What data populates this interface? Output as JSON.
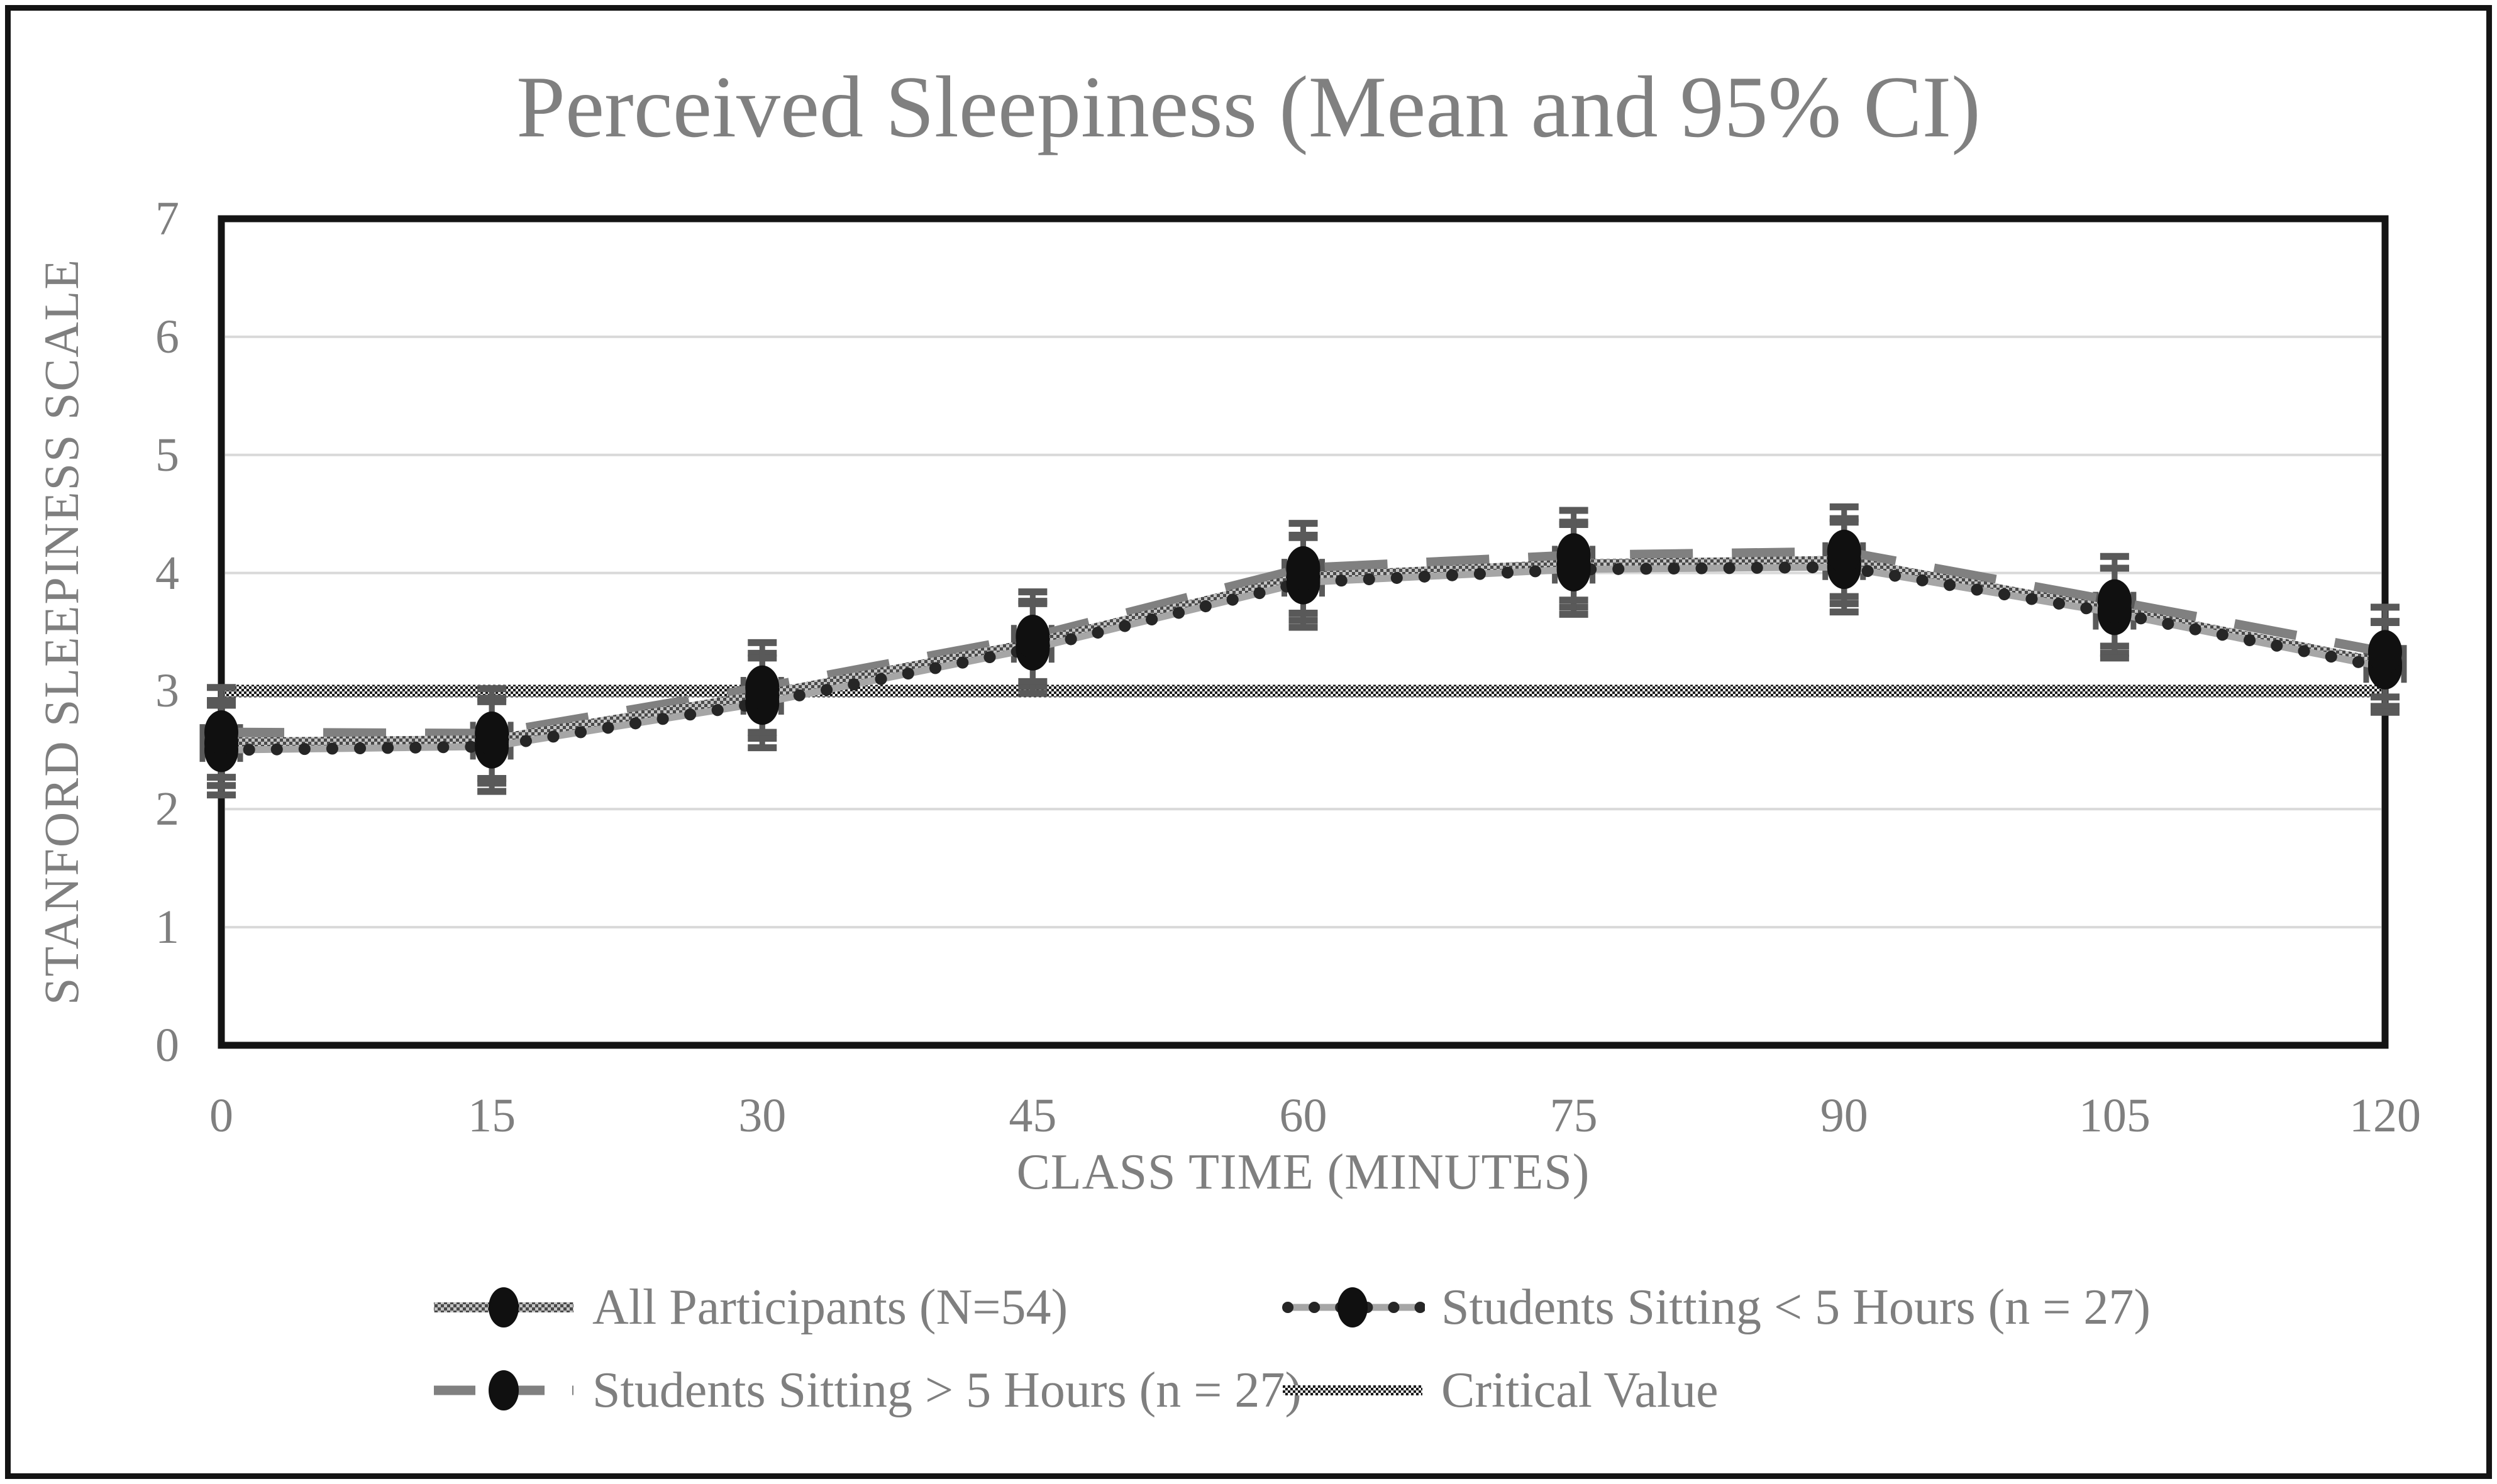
{
  "title": "Perceived Sleepiness (Mean and 95% CI)",
  "chart_data": {
    "type": "line",
    "title": "Perceived Sleepiness (Mean and 95% CI)",
    "xlabel": "CLASS TIME (MINUTES)",
    "ylabel": "STANFORD SLEEPINESS SCALE",
    "x": [
      0,
      15,
      30,
      45,
      60,
      75,
      90,
      105,
      120
    ],
    "xticklabels": [
      "0",
      "15",
      "30",
      "45",
      "60",
      "75",
      "90",
      "105",
      "120"
    ],
    "ylim": [
      0,
      7
    ],
    "yticks": [
      0,
      1,
      2,
      3,
      4,
      5,
      6,
      7
    ],
    "grid": true,
    "legend_position": "bottom",
    "error_bars": "95% confidence interval",
    "series": [
      {
        "name": "All Participants (N=54)",
        "style": "textured",
        "marker": "circle",
        "values": [
          2.56,
          2.58,
          2.96,
          3.4,
          3.96,
          4.07,
          4.1,
          3.68,
          3.23
        ],
        "ci_low": [
          2.2,
          2.22,
          2.6,
          3.04,
          3.6,
          3.71,
          3.74,
          3.32,
          2.87
        ],
        "ci_high": [
          2.92,
          2.94,
          3.32,
          3.76,
          4.32,
          4.43,
          4.46,
          4.04,
          3.59
        ]
      },
      {
        "name": "Students Sitting < 5 Hours (n = 27)",
        "style": "dotted",
        "marker": "circle",
        "values": [
          2.5,
          2.53,
          2.9,
          3.36,
          3.92,
          4.03,
          4.05,
          3.66,
          3.2
        ],
        "ci_low": [
          2.12,
          2.15,
          2.52,
          2.98,
          3.54,
          3.65,
          3.67,
          3.28,
          2.82
        ],
        "ci_high": [
          2.88,
          2.91,
          3.28,
          3.74,
          4.3,
          4.41,
          4.43,
          4.04,
          3.58
        ]
      },
      {
        "name": "Students Sitting > 5 Hours (n = 27)",
        "style": "dashed",
        "marker": "circle",
        "values": [
          2.65,
          2.64,
          3.03,
          3.46,
          4.04,
          4.15,
          4.18,
          3.76,
          3.33
        ],
        "ci_low": [
          2.27,
          2.26,
          2.65,
          3.08,
          3.66,
          3.77,
          3.8,
          3.38,
          2.95
        ],
        "ci_high": [
          3.03,
          3.02,
          3.41,
          3.84,
          4.42,
          4.53,
          4.56,
          4.14,
          3.71
        ]
      },
      {
        "name": "Critical Value",
        "style": "critical",
        "marker": "none",
        "values": [
          3,
          3,
          3,
          3,
          3,
          3,
          3,
          3,
          3
        ]
      }
    ],
    "colors": {
      "background": "#ffffff",
      "text": "#7f7f7f",
      "title_text": "#808080",
      "grid": "#d9d9d9",
      "frame": "#141414",
      "marker": "#101010",
      "error_bar": "#595959",
      "dashed_line": "#808080",
      "dotted_dot": "#262626",
      "dotted_base": "#a6a6a6",
      "texture_dark": "#4a4a4a",
      "texture_light": "#c4c4c4",
      "critical_dark": "#1a1a1a",
      "critical_light": "#ededed"
    }
  }
}
